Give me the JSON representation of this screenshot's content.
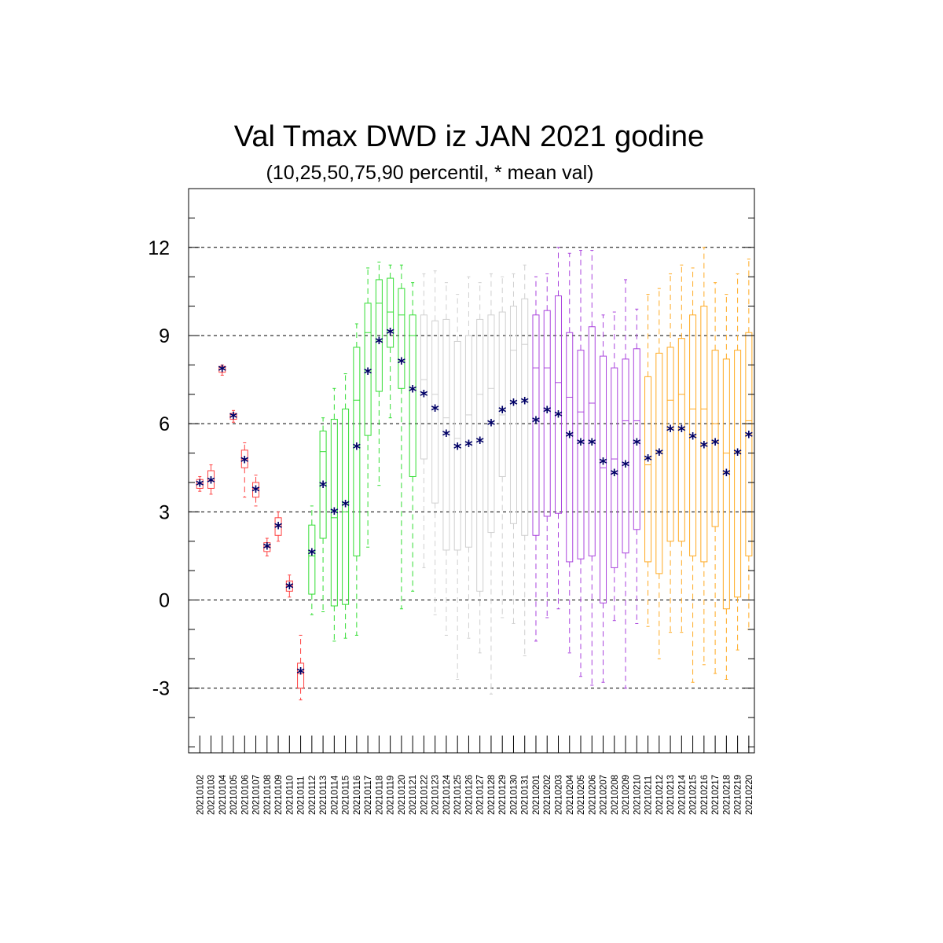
{
  "chart_data": {
    "type": "boxplot",
    "title": "Val Tmax DWD iz JAN 2021 godine",
    "subtitle": "(10,25,50,75,90 percentil, * mean val)",
    "xlabel": "",
    "ylabel": "",
    "ylim": [
      -5.2,
      14.0
    ],
    "y_ticks": [
      -3,
      0,
      3,
      6,
      9,
      12
    ],
    "y_tick_labels": [
      "-3",
      "0",
      "3",
      "6",
      "9",
      "12"
    ],
    "grid": "horizontal dashed at major ticks",
    "mean_marker_color": "#000066",
    "group_colors": [
      "#ff4040",
      "#33dd33",
      "#d0d0d0",
      "#aa44dd",
      "#ffaa22"
    ],
    "boxes": [
      {
        "date": "20210102",
        "p10": 3.7,
        "p25": 3.8,
        "p50": 3.95,
        "p75": 4.1,
        "p90": 4.2,
        "mean": 3.95,
        "group": 0
      },
      {
        "date": "20210103",
        "p10": 3.6,
        "p25": 3.8,
        "p50": 4.05,
        "p75": 4.4,
        "p90": 4.6,
        "mean": 4.05,
        "group": 0
      },
      {
        "date": "20210104",
        "p10": 7.65,
        "p25": 7.75,
        "p50": 7.85,
        "p75": 7.95,
        "p90": 8.0,
        "mean": 7.85,
        "group": 0
      },
      {
        "date": "20210105",
        "p10": 6.05,
        "p25": 6.15,
        "p50": 6.25,
        "p75": 6.35,
        "p90": 6.45,
        "mean": 6.25,
        "group": 0
      },
      {
        "date": "20210106",
        "p10": 3.5,
        "p25": 4.5,
        "p50": 4.8,
        "p75": 5.1,
        "p90": 5.35,
        "mean": 4.75,
        "group": 0
      },
      {
        "date": "20210107",
        "p10": 3.2,
        "p25": 3.5,
        "p50": 3.8,
        "p75": 4.0,
        "p90": 4.25,
        "mean": 3.75,
        "group": 0
      },
      {
        "date": "20210108",
        "p10": 1.5,
        "p25": 1.65,
        "p50": 1.8,
        "p75": 1.95,
        "p90": 2.1,
        "mean": 1.8,
        "group": 0
      },
      {
        "date": "20210109",
        "p10": 2.0,
        "p25": 2.2,
        "p50": 2.5,
        "p75": 2.8,
        "p90": 3.0,
        "mean": 2.5,
        "group": 0
      },
      {
        "date": "20210110",
        "p10": 0.1,
        "p25": 0.3,
        "p50": 0.5,
        "p75": 0.65,
        "p90": 0.85,
        "mean": 0.45,
        "group": 0
      },
      {
        "date": "20210111",
        "p10": -3.4,
        "p25": -3.0,
        "p50": -2.5,
        "p75": -2.15,
        "p90": -1.2,
        "mean": -2.45,
        "group": 0
      },
      {
        "date": "20210112",
        "p10": -0.5,
        "p25": 0.2,
        "p50": 1.5,
        "p75": 2.55,
        "p90": 3.2,
        "mean": 1.6,
        "group": 1
      },
      {
        "date": "20210113",
        "p10": -0.4,
        "p25": 2.1,
        "p50": 5.05,
        "p75": 5.75,
        "p90": 6.2,
        "mean": 3.9,
        "group": 1
      },
      {
        "date": "20210114",
        "p10": -1.4,
        "p25": -0.2,
        "p50": 2.8,
        "p75": 6.15,
        "p90": 7.2,
        "mean": 3.0,
        "group": 1
      },
      {
        "date": "20210115",
        "p10": -1.3,
        "p25": -0.15,
        "p50": 3.0,
        "p75": 6.5,
        "p90": 7.7,
        "mean": 3.25,
        "group": 1
      },
      {
        "date": "20210116",
        "p10": -1.2,
        "p25": 1.5,
        "p50": 6.8,
        "p75": 8.6,
        "p90": 9.4,
        "mean": 5.2,
        "group": 1
      },
      {
        "date": "20210117",
        "p10": 1.8,
        "p25": 5.6,
        "p50": 9.1,
        "p75": 10.1,
        "p90": 11.3,
        "mean": 7.75,
        "group": 1
      },
      {
        "date": "20210118",
        "p10": 3.9,
        "p25": 7.1,
        "p50": 10.1,
        "p75": 10.9,
        "p90": 11.5,
        "mean": 8.8,
        "group": 1
      },
      {
        "date": "20210119",
        "p10": 6.2,
        "p25": 8.6,
        "p50": 9.8,
        "p75": 10.95,
        "p90": 11.4,
        "mean": 9.1,
        "group": 1
      },
      {
        "date": "20210120",
        "p10": -0.3,
        "p25": 7.2,
        "p50": 9.7,
        "p75": 10.6,
        "p90": 11.4,
        "mean": 8.1,
        "group": 1
      },
      {
        "date": "20210121",
        "p10": 0.3,
        "p25": 4.2,
        "p50": 9.0,
        "p75": 9.7,
        "p90": 10.8,
        "mean": 7.15,
        "group": 1
      },
      {
        "date": "20210122",
        "p10": 1.1,
        "p25": 4.8,
        "p50": 7.5,
        "p75": 9.7,
        "p90": 11.1,
        "mean": 7.0,
        "group": 2
      },
      {
        "date": "20210123",
        "p10": -0.5,
        "p25": 3.3,
        "p50": 7.0,
        "p75": 9.5,
        "p90": 11.2,
        "mean": 6.5,
        "group": 2
      },
      {
        "date": "20210124",
        "p10": -1.2,
        "p25": 1.7,
        "p50": 6.2,
        "p75": 9.55,
        "p90": 10.8,
        "mean": 5.65,
        "group": 2
      },
      {
        "date": "20210125",
        "p10": -2.7,
        "p25": 1.7,
        "p50": 5.5,
        "p75": 8.8,
        "p90": 10.4,
        "mean": 5.2,
        "group": 2
      },
      {
        "date": "20210126",
        "p10": -1.3,
        "p25": 1.8,
        "p50": 6.3,
        "p75": 9.0,
        "p90": 11.0,
        "mean": 5.3,
        "group": 2
      },
      {
        "date": "20210127",
        "p10": -1.8,
        "p25": 0.3,
        "p50": 7.0,
        "p75": 9.55,
        "p90": 10.8,
        "mean": 5.4,
        "group": 2
      },
      {
        "date": "20210128",
        "p10": -3.2,
        "p25": 2.3,
        "p50": 7.2,
        "p75": 9.7,
        "p90": 11.1,
        "mean": 6.0,
        "group": 2
      },
      {
        "date": "20210129",
        "p10": -0.6,
        "p25": 4.2,
        "p50": 6.3,
        "p75": 9.8,
        "p90": 11.0,
        "mean": 6.45,
        "group": 2
      },
      {
        "date": "20210130",
        "p10": -0.8,
        "p25": 2.6,
        "p50": 8.5,
        "p75": 10.0,
        "p90": 11.1,
        "mean": 6.7,
        "group": 2
      },
      {
        "date": "20210131",
        "p10": -1.9,
        "p25": 2.2,
        "p50": 8.7,
        "p75": 10.25,
        "p90": 11.4,
        "mean": 6.75,
        "group": 2
      },
      {
        "date": "20210201",
        "p10": -1.4,
        "p25": 2.2,
        "p50": 7.9,
        "p75": 9.7,
        "p90": 11.0,
        "mean": 6.1,
        "group": 3
      },
      {
        "date": "20210202",
        "p10": -0.6,
        "p25": 2.85,
        "p50": 7.9,
        "p75": 9.85,
        "p90": 11.1,
        "mean": 6.45,
        "group": 3
      },
      {
        "date": "20210203",
        "p10": -0.3,
        "p25": 2.95,
        "p50": 7.4,
        "p75": 10.35,
        "p90": 12.0,
        "mean": 6.3,
        "group": 3
      },
      {
        "date": "20210204",
        "p10": -1.8,
        "p25": 1.3,
        "p50": 6.9,
        "p75": 9.1,
        "p90": 11.8,
        "mean": 5.6,
        "group": 3
      },
      {
        "date": "20210205",
        "p10": -2.6,
        "p25": 1.4,
        "p50": 6.4,
        "p75": 8.5,
        "p90": 11.9,
        "mean": 5.35,
        "group": 3
      },
      {
        "date": "20210206",
        "p10": -2.9,
        "p25": 1.5,
        "p50": 6.7,
        "p75": 9.3,
        "p90": 11.9,
        "mean": 5.35,
        "group": 3
      },
      {
        "date": "20210207",
        "p10": -2.8,
        "p25": -0.1,
        "p50": 4.5,
        "p75": 8.3,
        "p90": 9.7,
        "mean": 4.7,
        "group": 3
      },
      {
        "date": "20210208",
        "p10": -0.7,
        "p25": 1.1,
        "p50": 4.8,
        "p75": 7.9,
        "p90": 9.8,
        "mean": 4.3,
        "group": 3
      },
      {
        "date": "20210209",
        "p10": -3.0,
        "p25": 1.6,
        "p50": 6.1,
        "p75": 8.2,
        "p90": 10.9,
        "mean": 4.6,
        "group": 3
      },
      {
        "date": "20210210",
        "p10": -0.8,
        "p25": 2.4,
        "p50": 6.1,
        "p75": 8.55,
        "p90": 9.9,
        "mean": 5.35,
        "group": 3
      },
      {
        "date": "20210211",
        "p10": -0.9,
        "p25": 1.3,
        "p50": 4.6,
        "p75": 7.6,
        "p90": 10.4,
        "mean": 4.8,
        "group": 4
      },
      {
        "date": "20210212",
        "p10": -2.0,
        "p25": 0.9,
        "p50": 5.0,
        "p75": 8.4,
        "p90": 10.6,
        "mean": 5.0,
        "group": 4
      },
      {
        "date": "20210213",
        "p10": -1.1,
        "p25": 2.0,
        "p50": 6.8,
        "p75": 8.6,
        "p90": 11.1,
        "mean": 5.8,
        "group": 4
      },
      {
        "date": "20210214",
        "p10": -1.1,
        "p25": 2.0,
        "p50": 7.0,
        "p75": 8.9,
        "p90": 11.4,
        "mean": 5.8,
        "group": 4
      },
      {
        "date": "20210215",
        "p10": -2.8,
        "p25": 1.5,
        "p50": 6.5,
        "p75": 9.7,
        "p90": 11.3,
        "mean": 5.55,
        "group": 4
      },
      {
        "date": "20210216",
        "p10": -2.2,
        "p25": 1.3,
        "p50": 6.5,
        "p75": 10.0,
        "p90": 12.0,
        "mean": 5.25,
        "group": 4
      },
      {
        "date": "20210217",
        "p10": -2.5,
        "p25": 2.5,
        "p50": 6.0,
        "p75": 8.5,
        "p90": 10.8,
        "mean": 5.35,
        "group": 4
      },
      {
        "date": "20210218",
        "p10": -2.7,
        "p25": -0.3,
        "p50": 5.0,
        "p75": 8.2,
        "p90": 10.4,
        "mean": 4.3,
        "group": 4
      },
      {
        "date": "20210219",
        "p10": -1.7,
        "p25": 0.1,
        "p50": 5.0,
        "p75": 8.5,
        "p90": 11.1,
        "mean": 5.0,
        "group": 4
      },
      {
        "date": "20210220",
        "p10": -1.0,
        "p25": 1.5,
        "p50": 6.1,
        "p75": 9.1,
        "p90": 11.6,
        "mean": 5.6,
        "group": 4
      }
    ]
  }
}
